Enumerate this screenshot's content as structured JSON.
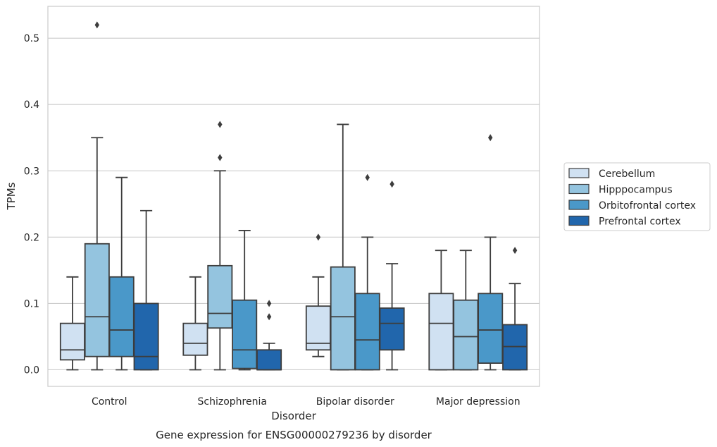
{
  "chart_data": {
    "type": "boxplot",
    "xlabel": "Disorder",
    "ylabel": "TPMs",
    "caption": "Gene expression for ENSG00000279236 by disorder",
    "ylim": [
      -0.025,
      0.548
    ],
    "yticks": [
      "0.0",
      "0.1",
      "0.2",
      "0.3",
      "0.4",
      "0.5"
    ],
    "grid": "horizontal",
    "legend_position": "right",
    "categories": [
      "Control",
      "Schizophrenia",
      "Bipolar disorder",
      "Major depression"
    ],
    "series": [
      {
        "name": "Cerebellum",
        "color": "#d0e1f2",
        "boxes": [
          {
            "whislo": 0.0,
            "q1": 0.015,
            "med": 0.03,
            "q3": 0.07,
            "whishi": 0.14,
            "fliers": []
          },
          {
            "whislo": 0.0,
            "q1": 0.022,
            "med": 0.04,
            "q3": 0.07,
            "whishi": 0.14,
            "fliers": []
          },
          {
            "whislo": 0.02,
            "q1": 0.03,
            "med": 0.04,
            "q3": 0.096,
            "whishi": 0.14,
            "fliers": [
              0.2
            ]
          },
          {
            "whislo": 0.0,
            "q1": 0.0,
            "med": 0.07,
            "q3": 0.115,
            "whishi": 0.18,
            "fliers": []
          }
        ]
      },
      {
        "name": "Hipppocampus",
        "color": "#94c4df",
        "boxes": [
          {
            "whislo": 0.0,
            "q1": 0.02,
            "med": 0.08,
            "q3": 0.19,
            "whishi": 0.35,
            "fliers": [
              0.52
            ]
          },
          {
            "whislo": 0.0,
            "q1": 0.063,
            "med": 0.085,
            "q3": 0.157,
            "whishi": 0.3,
            "fliers": [
              0.32,
              0.37
            ]
          },
          {
            "whislo": 0.0,
            "q1": 0.0,
            "med": 0.08,
            "q3": 0.155,
            "whishi": 0.37,
            "fliers": []
          },
          {
            "whislo": 0.0,
            "q1": 0.0,
            "med": 0.05,
            "q3": 0.105,
            "whishi": 0.18,
            "fliers": []
          }
        ]
      },
      {
        "name": "Orbitofrontal cortex",
        "color": "#4a98c9",
        "boxes": [
          {
            "whislo": 0.0,
            "q1": 0.02,
            "med": 0.06,
            "q3": 0.14,
            "whishi": 0.29,
            "fliers": []
          },
          {
            "whislo": 0.0,
            "q1": 0.002,
            "med": 0.03,
            "q3": 0.105,
            "whishi": 0.21,
            "fliers": []
          },
          {
            "whislo": 0.0,
            "q1": 0.0,
            "med": 0.045,
            "q3": 0.115,
            "whishi": 0.2,
            "fliers": [
              0.29
            ]
          },
          {
            "whislo": 0.0,
            "q1": 0.01,
            "med": 0.06,
            "q3": 0.115,
            "whishi": 0.2,
            "fliers": [
              0.35
            ]
          }
        ]
      },
      {
        "name": "Prefrontal cortex",
        "color": "#2166ac",
        "boxes": [
          {
            "whislo": 0.0,
            "q1": 0.0,
            "med": 0.02,
            "q3": 0.1,
            "whishi": 0.24,
            "fliers": []
          },
          {
            "whislo": 0.0,
            "q1": 0.0,
            "med": 0.0,
            "q3": 0.03,
            "whishi": 0.04,
            "fliers": [
              0.08,
              0.1
            ]
          },
          {
            "whislo": 0.0,
            "q1": 0.03,
            "med": 0.07,
            "q3": 0.093,
            "whishi": 0.16,
            "fliers": [
              0.28
            ]
          },
          {
            "whislo": 0.0,
            "q1": 0.0,
            "med": 0.035,
            "q3": 0.068,
            "whishi": 0.13,
            "fliers": [
              0.18
            ]
          }
        ]
      }
    ]
  }
}
